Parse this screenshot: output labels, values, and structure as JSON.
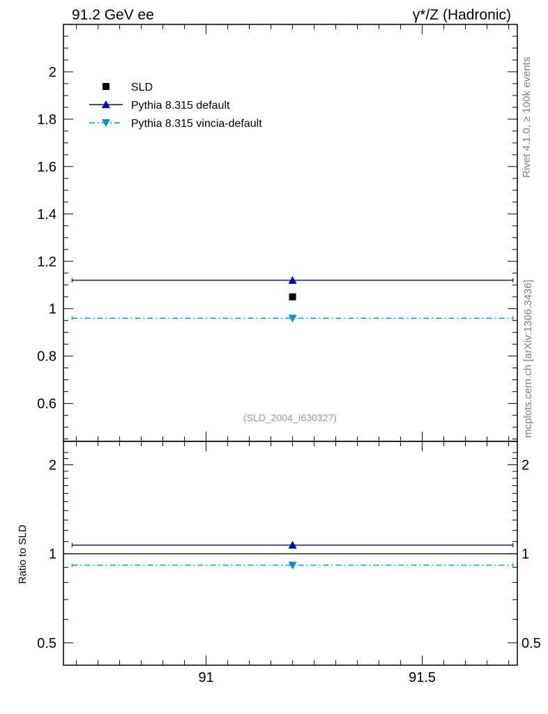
{
  "header": {
    "energy_label": "91.2 GeV ee",
    "process_label": "γ*/Z (Hadronic)"
  },
  "side": {
    "rivet_label": "Rivet 4.1.0, ≥ 100k events",
    "mcplots_label": "mcplots.cern.ch [arXiv:1306.3436]"
  },
  "reference_label": "(SLD_2004_I630327)",
  "ratio_ylabel": "Ratio to SLD",
  "colors": {
    "data": "#000000",
    "pythia_default": "#0000cc",
    "vincia": "#0099bb"
  },
  "chart_data": [
    {
      "type": "scatter",
      "panel": "main",
      "xlim": [
        90.67,
        91.72
      ],
      "ylim": [
        0.44,
        2.2
      ],
      "xticks": [
        91,
        91.5
      ],
      "yticks": [
        0.6,
        0.8,
        1,
        1.2,
        1.4,
        1.6,
        1.8,
        2
      ],
      "ytick_labels": [
        "0.6",
        "0.8",
        "1",
        "1.2",
        "1.4",
        "1.6",
        "1.8",
        "2"
      ],
      "legend_position": "top-left",
      "series": [
        {
          "name": "SLD",
          "marker": "square",
          "line": "none",
          "x": [
            91.2
          ],
          "y": [
            1.05
          ]
        },
        {
          "name": "Pythia 8.315 default",
          "marker": "triangle-up",
          "line": "solid",
          "x": [
            91.2
          ],
          "y": [
            1.12
          ],
          "xrange": [
            90.69,
            91.71
          ]
        },
        {
          "name": "Pythia 8.315 vincia-default",
          "marker": "triangle-down",
          "line": "dashdot",
          "x": [
            91.2
          ],
          "y": [
            0.96
          ],
          "xrange": [
            90.69,
            91.71
          ]
        }
      ]
    },
    {
      "type": "scatter",
      "panel": "ratio",
      "xlim": [
        90.67,
        91.72
      ],
      "ylim": [
        0.42,
        2.4
      ],
      "log_y": true,
      "xticks": [
        91,
        91.5
      ],
      "xtick_labels": [
        "91",
        "91.5"
      ],
      "yticks": [
        0.5,
        1,
        2
      ],
      "ytick_labels": [
        "0.5",
        "1",
        "2"
      ],
      "ylabel": "Ratio to SLD",
      "reference_line": 1,
      "series": [
        {
          "name": "Pythia 8.315 default",
          "marker": "triangle-up",
          "line": "solid",
          "x": [
            91.2
          ],
          "y": [
            1.07
          ],
          "xrange": [
            90.69,
            91.71
          ]
        },
        {
          "name": "Pythia 8.315 vincia-default",
          "marker": "triangle-down",
          "line": "dashdot",
          "x": [
            91.2
          ],
          "y": [
            0.915
          ],
          "xrange": [
            90.69,
            91.71
          ]
        }
      ]
    }
  ]
}
